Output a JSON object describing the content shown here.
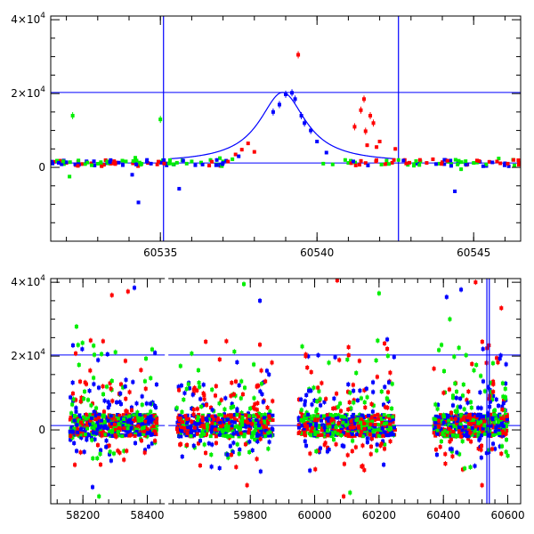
{
  "chart_data": [
    {
      "type": "scatter",
      "title": "",
      "xlabel": "",
      "ylabel": "",
      "xlim": [
        60531.5,
        60546.5
      ],
      "ylim": [
        -20000,
        41000
      ],
      "x_ticks": [
        60535,
        60540,
        60545
      ],
      "x_tick_labels": [
        "60535",
        "60540",
        "60545"
      ],
      "y_ticks": [
        0,
        20000,
        40000
      ],
      "y_tick_labels": [
        {
          "base": "0",
          "exp": ""
        },
        {
          "base": "2×10",
          "exp": "4"
        },
        {
          "base": "4×10",
          "exp": "4"
        }
      ],
      "hlines": [
        20300,
        1200
      ],
      "vlines": [
        60535.1,
        60542.6
      ],
      "model_curve": {
        "t0": 60538.9,
        "peak": 20300,
        "baseline": 1200,
        "width": 0.9,
        "color": "#0000ff"
      },
      "series_colors": {
        "red": "#ff0000",
        "green": "#00ee00",
        "blue": "#0000ff"
      },
      "series": [
        {
          "color": "red",
          "x": [
            60531.6,
            60531.8,
            60532.0,
            60532.3,
            60532.5,
            60532.8,
            60533.2,
            60533.4,
            60533.6,
            60534.6,
            60534.9,
            60537.4,
            60537.6,
            60537.8,
            60538.0,
            60539.4,
            60541.2,
            60541.4,
            60541.5,
            60541.55,
            60541.6,
            60541.7,
            60541.8,
            60541.9,
            60542.0,
            60542.5,
            60542.8,
            60543.5,
            60543.7,
            60544.0,
            60545.5
          ],
          "y": [
            1500,
            1800,
            1200,
            600,
            900,
            1100,
            700,
            1000,
            1300,
            1200,
            800,
            3500,
            4800,
            6500,
            4200,
            30500,
            11000,
            15500,
            18500,
            9800,
            6000,
            14000,
            12000,
            5500,
            7000,
            5000,
            2000,
            1200,
            2200,
            1400,
            1500
          ]
        },
        {
          "color": "green",
          "x": [
            60531.7,
            60532.1,
            60532.2,
            60532.6,
            60533.1,
            60533.9,
            60534.2,
            60534.4,
            60535.0,
            60535.3,
            60535.7,
            60536.0,
            60536.3,
            60536.6,
            60536.9,
            60537.0,
            60537.3,
            60540.2,
            60540.5,
            60540.9,
            60541.0,
            60542.6,
            60542.9,
            60543.1,
            60543.3,
            60543.9,
            60544.2,
            60544.6,
            60545.0,
            60545.8,
            60546.3
          ],
          "y": [
            1800,
            -2500,
            14000,
            900,
            1400,
            1600,
            2600,
            1000,
            13000,
            1100,
            1900,
            1600,
            1300,
            2000,
            2500,
            1600,
            2200,
            1000,
            800,
            2000,
            1200,
            2000,
            1100,
            900,
            1600,
            1000,
            1500,
            -500,
            1200,
            2400,
            500
          ]
        },
        {
          "color": "blue",
          "x": [
            60532.4,
            60532.9,
            60533.3,
            60533.8,
            60534.1,
            60534.3,
            60534.7,
            60535.6,
            60536.8,
            60537.1,
            60537.5,
            60538.6,
            60538.8,
            60539.0,
            60539.2,
            60539.3,
            60539.5,
            60539.6,
            60539.8,
            60540.0,
            60540.3,
            60543.2,
            60543.8,
            60544.1,
            60544.4,
            60544.5,
            60544.8,
            60545.2,
            60546.0
          ],
          "y": [
            700,
            500,
            1100,
            600,
            -2000,
            -9500,
            1000,
            -5800,
            2000,
            1800,
            3000,
            15000,
            17000,
            19800,
            20200,
            18500,
            14000,
            12000,
            10000,
            7000,
            4000,
            1000,
            900,
            2000,
            -6500,
            1200,
            800,
            1500,
            1100
          ]
        }
      ]
    },
    {
      "type": "scatter",
      "title": "",
      "xlabel": "",
      "ylabel": "",
      "xlim": [
        58100,
        60640
      ],
      "ylim": [
        -20000,
        41000
      ],
      "x_ticks": [
        58200,
        58400,
        59800,
        60000,
        60200,
        60400,
        60600
      ],
      "x_tick_labels": [
        "58200",
        "58400",
        "59800",
        "60000",
        "60200",
        "60400",
        "60600"
      ],
      "y_ticks": [
        0,
        20000,
        40000
      ],
      "y_tick_labels": [
        {
          "base": "0",
          "exp": ""
        },
        {
          "base": "2×10",
          "exp": "4"
        },
        {
          "base": "4×10",
          "exp": "4"
        }
      ],
      "hlines": [
        20300,
        1200
      ],
      "vlines": [
        60535.1,
        60542.6
      ],
      "axis_break": {
        "between": [
          58460,
          59540
        ],
        "label": ""
      },
      "seasons": [
        [
          58160,
          58430
        ],
        [
          59570,
          59870
        ],
        [
          59950,
          60250
        ],
        [
          60370,
          60600
        ]
      ],
      "series_colors": {
        "red": "#ff0000",
        "green": "#00ee00",
        "blue": "#0000ff"
      },
      "outliers": [
        {
          "color": "green",
          "x": 58180,
          "y": 28000
        },
        {
          "color": "green",
          "x": 58185,
          "y": 23000
        },
        {
          "color": "red",
          "x": 58290,
          "y": 36500
        },
        {
          "color": "red",
          "x": 58340,
          "y": 37500
        },
        {
          "color": "blue",
          "x": 58360,
          "y": 38500
        },
        {
          "color": "blue",
          "x": 58230,
          "y": -15500
        },
        {
          "color": "green",
          "x": 58250,
          "y": -18000
        },
        {
          "color": "green",
          "x": 59780,
          "y": 39500
        },
        {
          "color": "red",
          "x": 59790,
          "y": -15000
        },
        {
          "color": "blue",
          "x": 59830,
          "y": 35000
        },
        {
          "color": "red",
          "x": 60070,
          "y": 40500
        },
        {
          "color": "red",
          "x": 60090,
          "y": -18000
        },
        {
          "color": "green",
          "x": 60200,
          "y": 37000
        },
        {
          "color": "green",
          "x": 60110,
          "y": -17000
        },
        {
          "color": "blue",
          "x": 60410,
          "y": 36000
        },
        {
          "color": "green",
          "x": 60420,
          "y": 30000
        },
        {
          "color": "red",
          "x": 60500,
          "y": 40000
        },
        {
          "color": "red",
          "x": 60580,
          "y": 33000
        },
        {
          "color": "blue",
          "x": 60455,
          "y": 38000
        },
        {
          "color": "green",
          "x": 60600,
          "y": -7000
        },
        {
          "color": "red",
          "x": 60520,
          "y": -15000
        }
      ]
    }
  ]
}
